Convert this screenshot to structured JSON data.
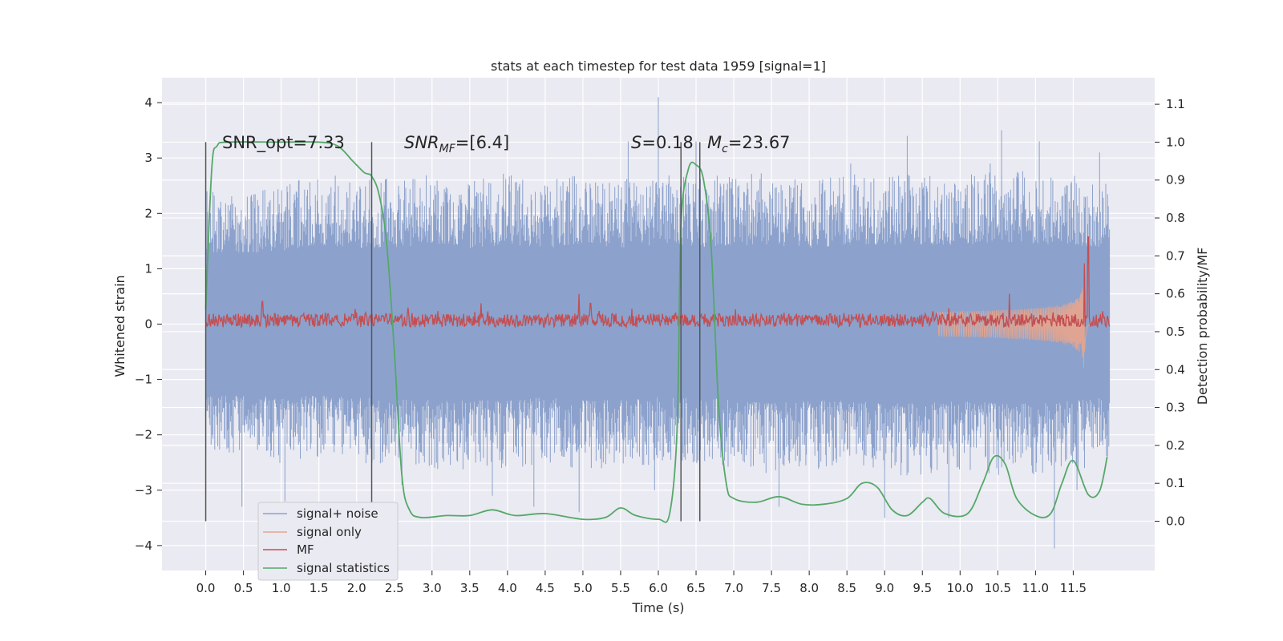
{
  "chart_data": {
    "type": "line",
    "title": "stats at each timestep for test data 1959 [signal=1]",
    "xlabel": "Time (s)",
    "ylabel": "Whitened strain",
    "y2label": "Detection probability/MF",
    "xlim": [
      -0.58,
      12.58
    ],
    "ylim": [
      -4.45,
      4.45
    ],
    "y2lim": [
      -0.13,
      1.17
    ],
    "x_ticks": [
      0.0,
      0.5,
      1.0,
      1.5,
      2.0,
      2.5,
      3.0,
      3.5,
      4.0,
      4.5,
      5.0,
      5.5,
      6.0,
      6.5,
      7.0,
      7.5,
      8.0,
      8.5,
      9.0,
      9.5,
      10.0,
      10.5,
      11.0,
      11.5
    ],
    "x_tick_labels": [
      "0.0",
      "0.5",
      "1.0",
      "1.5",
      "2.0",
      "2.5",
      "3.0",
      "3.5",
      "4.0",
      "4.5",
      "5.0",
      "5.5",
      "6.0",
      "6.5",
      "7.0",
      "7.5",
      "8.0",
      "8.5",
      "9.0",
      "9.5",
      "10.0",
      "10.5",
      "11.0",
      "11.5"
    ],
    "y_ticks": [
      -4,
      -3,
      -2,
      -1,
      0,
      1,
      2,
      3,
      4
    ],
    "y_tick_labels": [
      "−4",
      "−3",
      "−2",
      "−1",
      "0",
      "1",
      "2",
      "3",
      "4"
    ],
    "y2_ticks": [
      0.0,
      0.1,
      0.2,
      0.3,
      0.4,
      0.5,
      0.6,
      0.7,
      0.8,
      0.9,
      1.0,
      1.1
    ],
    "y2_tick_labels": [
      "0.0",
      "0.1",
      "0.2",
      "0.3",
      "0.4",
      "0.5",
      "0.6",
      "0.7",
      "0.8",
      "0.9",
      "1.0",
      "1.1"
    ],
    "grid": true,
    "legend_position": "lower-left",
    "annotations": {
      "snr_opt": "SNR_opt=7.33",
      "snr_mf_main": "SNR",
      "snr_mf_sub": "MF",
      "snr_mf_rest": "=[6.4]",
      "s_main": "S",
      "s_rest": "=0.18",
      "mc_main": "M",
      "mc_sub": "c",
      "mc_rest": "=23.67"
    },
    "vertical_lines_x": [
      0.0,
      2.2,
      6.3,
      6.55
    ],
    "vertical_lines_y2_range": [
      0.0,
      1.0
    ],
    "series": [
      {
        "name": "signal+ noise",
        "axis": "left",
        "color": "#8ca2cc",
        "kind": "noise-band",
        "x_range": [
          0.0,
          11.98
        ],
        "core_band": [
          -1.3,
          1.3
        ],
        "envelope_upper": [
          [
            0.0,
            2.3
          ],
          [
            0.5,
            2.2
          ],
          [
            1.0,
            2.4
          ],
          [
            1.5,
            2.6
          ],
          [
            2.0,
            2.5
          ],
          [
            2.5,
            2.5
          ],
          [
            3.0,
            2.6
          ],
          [
            3.5,
            2.5
          ],
          [
            4.0,
            2.6
          ],
          [
            4.5,
            2.5
          ],
          [
            5.0,
            2.6
          ],
          [
            5.5,
            2.5
          ],
          [
            6.0,
            2.6
          ],
          [
            6.5,
            2.5
          ],
          [
            7.0,
            2.6
          ],
          [
            7.5,
            2.6
          ],
          [
            8.0,
            2.5
          ],
          [
            8.5,
            2.6
          ],
          [
            9.0,
            2.6
          ],
          [
            9.5,
            2.6
          ],
          [
            10.0,
            2.6
          ],
          [
            10.5,
            2.7
          ],
          [
            11.0,
            2.6
          ],
          [
            11.5,
            2.6
          ],
          [
            11.98,
            2.5
          ]
        ],
        "envelope_lower": [
          [
            0.0,
            -2.3
          ],
          [
            0.5,
            -2.3
          ],
          [
            1.0,
            -2.4
          ],
          [
            1.5,
            -2.3
          ],
          [
            2.0,
            -2.4
          ],
          [
            2.5,
            -2.4
          ],
          [
            3.0,
            -2.5
          ],
          [
            3.5,
            -2.5
          ],
          [
            4.0,
            -2.5
          ],
          [
            4.5,
            -2.4
          ],
          [
            5.0,
            -2.5
          ],
          [
            5.5,
            -2.5
          ],
          [
            6.0,
            -2.4
          ],
          [
            6.5,
            -2.4
          ],
          [
            7.0,
            -2.5
          ],
          [
            7.5,
            -2.6
          ],
          [
            8.0,
            -2.5
          ],
          [
            8.5,
            -2.5
          ],
          [
            9.0,
            -2.6
          ],
          [
            9.5,
            -2.6
          ],
          [
            10.0,
            -2.5
          ],
          [
            10.5,
            -2.6
          ],
          [
            11.0,
            -2.6
          ],
          [
            11.5,
            -2.5
          ],
          [
            11.98,
            -2.4
          ]
        ],
        "spikes": [
          [
            0.48,
            -3.3
          ],
          [
            1.05,
            -3.2
          ],
          [
            2.6,
            -2.9
          ],
          [
            3.8,
            -3.1
          ],
          [
            4.35,
            -3.3
          ],
          [
            4.95,
            -3.4
          ],
          [
            5.6,
            3.3
          ],
          [
            5.95,
            -3.0
          ],
          [
            6.0,
            4.1
          ],
          [
            6.5,
            3.3
          ],
          [
            7.6,
            -3.3
          ],
          [
            8.55,
            2.9
          ],
          [
            9.0,
            -3.5
          ],
          [
            9.3,
            3.4
          ],
          [
            9.85,
            -3.5
          ],
          [
            10.4,
            2.9
          ],
          [
            10.55,
            3.5
          ],
          [
            11.05,
            3.3
          ],
          [
            11.25,
            -4.05
          ],
          [
            11.55,
            -3.0
          ],
          [
            11.65,
            -2.6
          ],
          [
            11.85,
            3.1
          ]
        ]
      },
      {
        "name": "signal only",
        "axis": "left",
        "color": "#e8a58c",
        "kind": "chirp",
        "start_x": 9.7,
        "merger_x": 11.65,
        "end_x": 11.72,
        "peak_amplitude": 1.55
      },
      {
        "name": "MF",
        "axis": "right",
        "color": "#c44e52",
        "kind": "noisy-baseline",
        "x_range": [
          0.0,
          11.98
        ],
        "baseline": 0.53,
        "spikes": [
          [
            0.75,
            0.58
          ],
          [
            3.65,
            0.575
          ],
          [
            4.95,
            0.6
          ],
          [
            5.1,
            0.575
          ],
          [
            10.65,
            0.6
          ],
          [
            11.65,
            0.68
          ],
          [
            11.7,
            0.75
          ]
        ]
      },
      {
        "name": "signal statistics",
        "axis": "right",
        "color": "#55a868",
        "kind": "curve",
        "points": [
          [
            0.0,
            0.56
          ],
          [
            0.08,
            0.93
          ],
          [
            0.15,
            0.99
          ],
          [
            0.3,
            1.0
          ],
          [
            1.0,
            1.0
          ],
          [
            1.5,
            1.0
          ],
          [
            1.75,
            0.99
          ],
          [
            1.95,
            0.95
          ],
          [
            2.1,
            0.92
          ],
          [
            2.2,
            0.91
          ],
          [
            2.3,
            0.86
          ],
          [
            2.4,
            0.73
          ],
          [
            2.5,
            0.45
          ],
          [
            2.6,
            0.12
          ],
          [
            2.7,
            0.03
          ],
          [
            2.85,
            0.01
          ],
          [
            3.2,
            0.015
          ],
          [
            3.5,
            0.015
          ],
          [
            3.8,
            0.03
          ],
          [
            4.1,
            0.015
          ],
          [
            4.5,
            0.02
          ],
          [
            5.0,
            0.005
          ],
          [
            5.3,
            0.01
          ],
          [
            5.5,
            0.035
          ],
          [
            5.7,
            0.015
          ],
          [
            6.0,
            0.005
          ],
          [
            6.15,
            0.02
          ],
          [
            6.25,
            0.25
          ],
          [
            6.3,
            0.78
          ],
          [
            6.4,
            0.93
          ],
          [
            6.5,
            0.94
          ],
          [
            6.6,
            0.9
          ],
          [
            6.7,
            0.72
          ],
          [
            6.8,
            0.3
          ],
          [
            6.9,
            0.1
          ],
          [
            7.0,
            0.06
          ],
          [
            7.3,
            0.05
          ],
          [
            7.6,
            0.065
          ],
          [
            7.9,
            0.045
          ],
          [
            8.2,
            0.045
          ],
          [
            8.5,
            0.06
          ],
          [
            8.7,
            0.1
          ],
          [
            8.9,
            0.09
          ],
          [
            9.1,
            0.03
          ],
          [
            9.3,
            0.015
          ],
          [
            9.5,
            0.05
          ],
          [
            9.6,
            0.06
          ],
          [
            9.8,
            0.02
          ],
          [
            10.1,
            0.02
          ],
          [
            10.3,
            0.1
          ],
          [
            10.45,
            0.17
          ],
          [
            10.6,
            0.15
          ],
          [
            10.75,
            0.06
          ],
          [
            11.0,
            0.015
          ],
          [
            11.2,
            0.02
          ],
          [
            11.35,
            0.1
          ],
          [
            11.5,
            0.16
          ],
          [
            11.7,
            0.07
          ],
          [
            11.85,
            0.08
          ],
          [
            11.95,
            0.17
          ]
        ]
      }
    ]
  }
}
